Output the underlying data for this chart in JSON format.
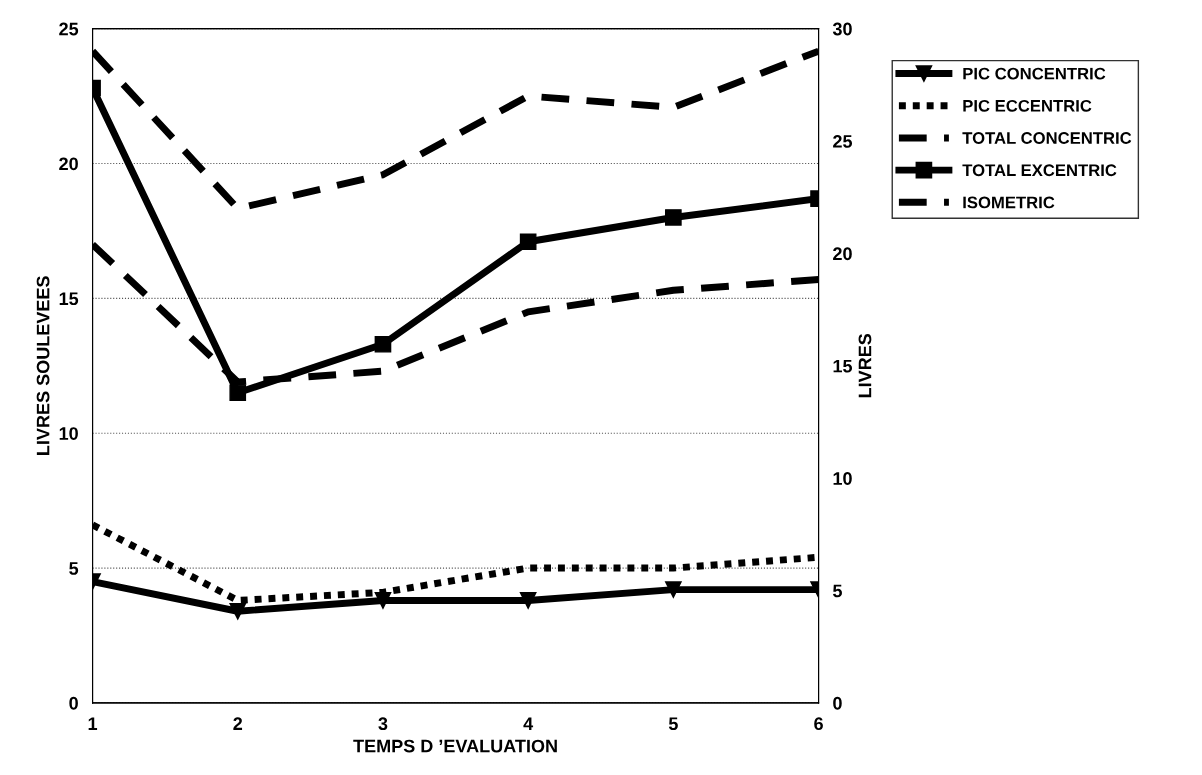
{
  "chart_data": {
    "type": "line",
    "xlabel": "TEMPS D ’EVALUATION",
    "ylabel": "LIVRES SOULEVEES",
    "y2label": "LIVRES",
    "x": [
      1,
      2,
      3,
      4,
      5,
      6
    ],
    "xlim": [
      1,
      6
    ],
    "xticks": [
      1,
      2,
      3,
      4,
      5,
      6
    ],
    "ylim": [
      0,
      25
    ],
    "yticks": [
      0,
      5,
      10,
      15,
      20,
      25
    ],
    "y2lim": [
      0,
      30
    ],
    "y2ticks": [
      0,
      5,
      10,
      15,
      20,
      25,
      30
    ],
    "grid": "y",
    "legend": "top right",
    "series": [
      {
        "name": "PIC CONCENTRIC",
        "color": "#000000",
        "marker": "triangle",
        "line_style": "solid",
        "values": [
          4.5,
          3.4,
          3.8,
          3.8,
          4.2,
          4.2
        ]
      },
      {
        "name": "PIC ECCENTRIC",
        "color": "#000000",
        "marker": "none",
        "line_style": "dotted",
        "values": [
          6.6,
          3.8,
          4.1,
          5.0,
          5.0,
          5.4
        ]
      },
      {
        "name": "TOTAL CONCENTRIC",
        "color": "#000000",
        "marker": "none",
        "line_style": "dashed",
        "values": [
          17.0,
          11.9,
          12.3,
          14.5,
          15.3,
          15.7
        ]
      },
      {
        "name": "TOTAL EXCENTRIC",
        "color": "#000000",
        "marker": "square",
        "line_style": "solid",
        "values": [
          22.8,
          11.5,
          13.3,
          17.1,
          18.0,
          18.7
        ]
      },
      {
        "name": "ISOMETRIC",
        "color": "#000000",
        "marker": "none",
        "line_style": "dashed",
        "axis": "y2",
        "values": [
          29.0,
          22.0,
          23.5,
          27.0,
          26.5,
          29.0
        ]
      }
    ]
  }
}
